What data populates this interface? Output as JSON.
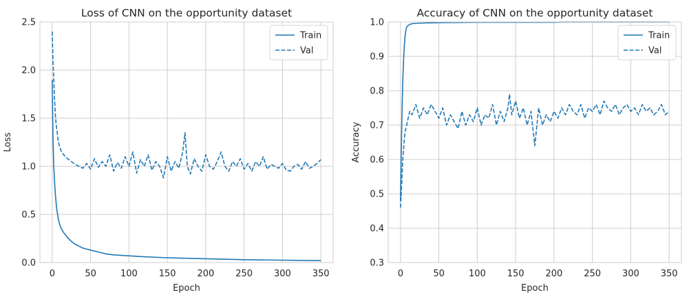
{
  "chart_data": [
    {
      "type": "line",
      "title": "Loss of CNN on the opportunity dataset",
      "xlabel": "Epoch",
      "ylabel": "Loss",
      "xlim": [
        -16,
        366
      ],
      "ylim": [
        0,
        2.5
      ],
      "xticks": [
        0,
        50,
        100,
        150,
        200,
        250,
        300,
        350
      ],
      "yticks": [
        0.0,
        0.5,
        1.0,
        1.5,
        2.0,
        2.5
      ],
      "ytick_labels": [
        "0.0",
        "0.5",
        "1.0",
        "1.5",
        "2.0",
        "2.5"
      ],
      "grid": true,
      "legend": "top-right",
      "color": "#1f77b4",
      "series": [
        {
          "name": "Train",
          "style": "solid",
          "x": [
            0,
            1,
            2,
            3,
            4,
            5,
            6,
            7,
            8,
            10,
            12,
            15,
            18,
            20,
            25,
            30,
            35,
            40,
            50,
            60,
            70,
            80,
            100,
            120,
            150,
            200,
            250,
            300,
            350
          ],
          "y": [
            1.9,
            1.3,
            1.0,
            0.85,
            0.72,
            0.63,
            0.55,
            0.5,
            0.45,
            0.39,
            0.35,
            0.31,
            0.28,
            0.26,
            0.22,
            0.19,
            0.17,
            0.15,
            0.13,
            0.11,
            0.09,
            0.08,
            0.07,
            0.06,
            0.05,
            0.04,
            0.03,
            0.025,
            0.02
          ]
        },
        {
          "name": "Val",
          "style": "dashed",
          "x": [
            0,
            1,
            2,
            3,
            4,
            5,
            6,
            7,
            8,
            10,
            12,
            15,
            20,
            25,
            30,
            35,
            40,
            45,
            50,
            55,
            60,
            65,
            70,
            75,
            80,
            85,
            90,
            95,
            100,
            105,
            110,
            115,
            120,
            125,
            130,
            135,
            140,
            145,
            150,
            155,
            160,
            165,
            170,
            173,
            176,
            180,
            185,
            190,
            195,
            200,
            205,
            210,
            215,
            220,
            225,
            230,
            235,
            240,
            245,
            250,
            255,
            260,
            265,
            270,
            275,
            280,
            285,
            290,
            295,
            300,
            305,
            310,
            315,
            320,
            325,
            330,
            335,
            340,
            345,
            350
          ],
          "y": [
            2.4,
            2.1,
            1.9,
            1.7,
            1.55,
            1.45,
            1.38,
            1.32,
            1.25,
            1.2,
            1.15,
            1.12,
            1.08,
            1.05,
            1.02,
            1.0,
            0.98,
            1.03,
            0.97,
            1.08,
            0.99,
            1.05,
            1.0,
            1.12,
            0.95,
            1.04,
            0.98,
            1.1,
            1.0,
            1.15,
            0.93,
            1.07,
            1.0,
            1.12,
            0.96,
            1.05,
            1.0,
            0.88,
            1.1,
            0.95,
            1.05,
            0.98,
            1.15,
            1.35,
            1.0,
            0.92,
            1.08,
            1.0,
            0.95,
            1.12,
            1.0,
            0.97,
            1.05,
            1.15,
            1.0,
            0.95,
            1.05,
            1.0,
            1.08,
            0.97,
            1.03,
            0.95,
            1.05,
            1.0,
            1.1,
            0.97,
            1.02,
            1.0,
            0.98,
            1.03,
            0.96,
            0.95,
            1.0,
            1.02,
            0.97,
            1.05,
            0.98,
            1.0,
            1.03,
            1.07
          ]
        }
      ]
    },
    {
      "type": "line",
      "title": "Accuracy of CNN on the opportunity dataset",
      "xlabel": "Epoch",
      "ylabel": "Accuracy",
      "xlim": [
        -16,
        366
      ],
      "ylim": [
        0.3,
        1.0
      ],
      "xticks": [
        0,
        50,
        100,
        150,
        200,
        250,
        300,
        350
      ],
      "yticks": [
        0.3,
        0.4,
        0.5,
        0.6,
        0.7,
        0.8,
        0.9,
        1.0
      ],
      "ytick_labels": [
        "0.3",
        "0.4",
        "0.5",
        "0.6",
        "0.7",
        "0.8",
        "0.9",
        "1.0"
      ],
      "grid": true,
      "legend": "top-right",
      "color": "#1f77b4",
      "series": [
        {
          "name": "Train",
          "style": "solid",
          "x": [
            0,
            1,
            2,
            3,
            4,
            5,
            6,
            7,
            8,
            10,
            12,
            15,
            20,
            30,
            50,
            100,
            150,
            200,
            210,
            250,
            300,
            350
          ],
          "y": [
            0.48,
            0.62,
            0.74,
            0.83,
            0.89,
            0.93,
            0.96,
            0.975,
            0.985,
            0.99,
            0.993,
            0.995,
            0.996,
            0.997,
            0.998,
            0.999,
            0.999,
            0.999,
            1.0,
            1.0,
            1.0,
            1.0
          ]
        },
        {
          "name": "Val",
          "style": "dashed",
          "x": [
            0,
            1,
            2,
            3,
            4,
            5,
            6,
            8,
            10,
            12,
            15,
            20,
            25,
            30,
            35,
            40,
            45,
            50,
            55,
            60,
            65,
            70,
            75,
            80,
            85,
            90,
            95,
            100,
            105,
            110,
            115,
            120,
            125,
            130,
            135,
            140,
            142,
            145,
            150,
            155,
            160,
            165,
            170,
            175,
            180,
            185,
            190,
            195,
            200,
            205,
            210,
            215,
            220,
            225,
            230,
            235,
            240,
            245,
            250,
            255,
            260,
            265,
            270,
            275,
            280,
            285,
            290,
            295,
            300,
            305,
            310,
            315,
            320,
            325,
            330,
            335,
            340,
            345,
            350
          ],
          "y": [
            0.46,
            0.5,
            0.55,
            0.6,
            0.63,
            0.66,
            0.68,
            0.7,
            0.72,
            0.74,
            0.73,
            0.76,
            0.72,
            0.75,
            0.73,
            0.76,
            0.74,
            0.72,
            0.75,
            0.7,
            0.73,
            0.71,
            0.69,
            0.74,
            0.7,
            0.73,
            0.71,
            0.75,
            0.7,
            0.73,
            0.72,
            0.76,
            0.7,
            0.74,
            0.71,
            0.75,
            0.79,
            0.73,
            0.77,
            0.72,
            0.75,
            0.7,
            0.74,
            0.64,
            0.75,
            0.7,
            0.73,
            0.71,
            0.74,
            0.72,
            0.75,
            0.73,
            0.76,
            0.74,
            0.73,
            0.76,
            0.72,
            0.75,
            0.74,
            0.76,
            0.73,
            0.77,
            0.75,
            0.74,
            0.76,
            0.73,
            0.75,
            0.76,
            0.74,
            0.75,
            0.73,
            0.76,
            0.74,
            0.75,
            0.73,
            0.74,
            0.76,
            0.73,
            0.74
          ]
        }
      ]
    }
  ]
}
